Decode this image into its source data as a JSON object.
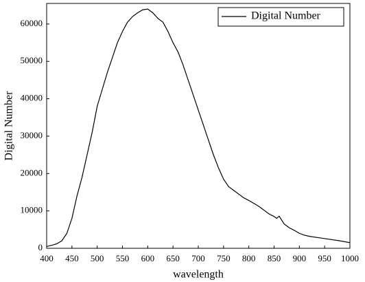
{
  "chart_data": {
    "type": "line",
    "x_label": "wavelength",
    "y_label": "Digital Number",
    "x": [
      400,
      410,
      420,
      430,
      440,
      450,
      460,
      470,
      480,
      490,
      500,
      510,
      520,
      530,
      540,
      550,
      560,
      570,
      580,
      590,
      600,
      610,
      620,
      630,
      640,
      650,
      660,
      670,
      680,
      690,
      700,
      710,
      720,
      730,
      740,
      750,
      760,
      770,
      780,
      790,
      800,
      810,
      820,
      830,
      840,
      850,
      855,
      860,
      870,
      880,
      890,
      900,
      910,
      920,
      940,
      960,
      980,
      1000
    ],
    "series": [
      {
        "name": "Digital Number",
        "color": "#000000",
        "values": [
          500,
          800,
          1200,
          2000,
          4000,
          8000,
          14000,
          19000,
          25000,
          31000,
          38000,
          42500,
          47000,
          51000,
          55000,
          58000,
          60500,
          62000,
          63000,
          63800,
          64000,
          63000,
          61500,
          60500,
          58000,
          55000,
          52500,
          49000,
          45000,
          41000,
          37000,
          33000,
          29000,
          25000,
          21500,
          18500,
          16500,
          15500,
          14500,
          13500,
          12800,
          12000,
          11200,
          10200,
          9200,
          8500,
          8000,
          8600,
          6500,
          5500,
          4800,
          4000,
          3500,
          3200,
          2800,
          2400,
          2000,
          1500
        ]
      }
    ],
    "xlim": [
      400,
      1000
    ],
    "xticks": [
      400,
      450,
      500,
      550,
      600,
      650,
      700,
      750,
      800,
      850,
      900,
      950,
      1000
    ],
    "ylim": [
      0,
      65500
    ],
    "yticks": [
      0,
      10000,
      20000,
      30000,
      40000,
      50000,
      60000
    ],
    "grid": false,
    "legend": "upper right"
  }
}
